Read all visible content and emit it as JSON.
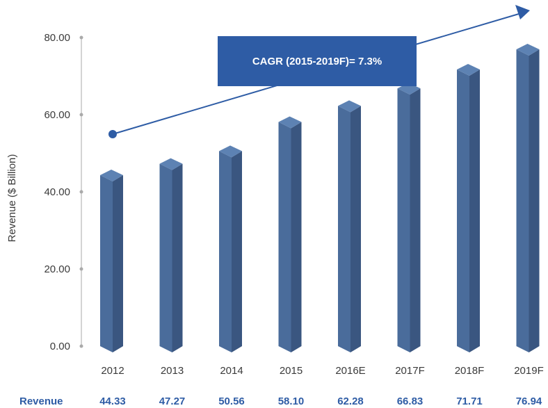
{
  "chart_data": {
    "type": "bar",
    "title": "",
    "xlabel": "",
    "ylabel": "Revenue ($ Billion)",
    "ylim": [
      0,
      80
    ],
    "yticks": [
      "0.00",
      "20.00",
      "40.00",
      "60.00",
      "80.00"
    ],
    "categories": [
      "2012",
      "2013",
      "2014",
      "2015",
      "2016E",
      "2017F",
      "2018F",
      "2019F"
    ],
    "values": [
      44.33,
      47.27,
      50.56,
      58.1,
      62.28,
      66.83,
      71.71,
      76.94
    ],
    "grid": false,
    "table_row": {
      "label": "Revenue",
      "values": [
        "44.33",
        "47.27",
        "50.56",
        "58.10",
        "62.28",
        "66.83",
        "71.71",
        "76.94"
      ]
    },
    "annotation": {
      "text": "CAGR (2015-2019F)= 7.3%",
      "type": "trend-arrow"
    },
    "colors": {
      "bar_front": "#4a6c9b",
      "bar_side": "#3a5680",
      "bar_top": "#5d82b3",
      "annotation_box": "#2e5ca5",
      "arrow": "#2e5ca5",
      "row_text": "#2e5ca5",
      "axis": "#aaaaaa",
      "tick_text": "#3a3a3a"
    }
  }
}
